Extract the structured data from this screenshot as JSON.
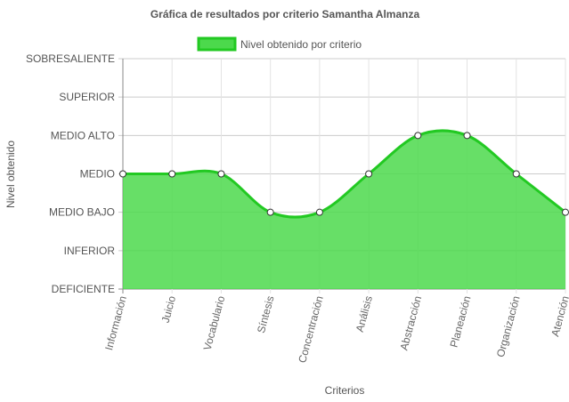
{
  "chart_data": {
    "type": "area",
    "title": "Gráfica de resultados por criterio Samantha Almanza",
    "xlabel": "Criterios",
    "ylabel": "Nivel obtenido",
    "y_levels": [
      "DEFICIENTE",
      "INFERIOR",
      "MEDIO BAJO",
      "MEDIO",
      "MEDIO ALTO",
      "SUPERIOR",
      "SOBRESALIENTE"
    ],
    "categories": [
      "Información",
      "Juicio",
      "Vocabulario",
      "Síntesis",
      "Concentración",
      "Análisis",
      "Abstracción",
      "Planeación",
      "Organización",
      "Atención"
    ],
    "series": [
      {
        "name": "Nivel obtenido por criterio",
        "values": [
          "MEDIO",
          "MEDIO",
          "MEDIO",
          "MEDIO BAJO",
          "MEDIO BAJO",
          "MEDIO",
          "MEDIO ALTO",
          "MEDIO ALTO",
          "MEDIO",
          "MEDIO BAJO"
        ],
        "color": "#22c922",
        "fill": "#4cd94c"
      }
    ],
    "grid": true,
    "legend": "top"
  }
}
